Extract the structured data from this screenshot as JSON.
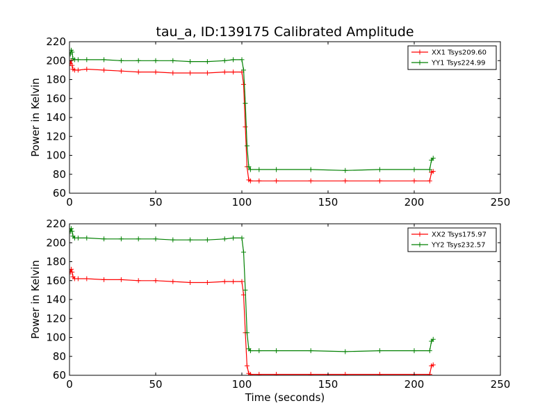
{
  "chart_data": [
    {
      "type": "line",
      "title": "tau_a, ID:139175 Calibrated Amplitude",
      "xlabel": "",
      "ylabel": "Power in Kelvin",
      "xlim": [
        0,
        250
      ],
      "ylim": [
        60,
        220
      ],
      "xticks": [
        0,
        50,
        100,
        150,
        200,
        250
      ],
      "yticks": [
        60,
        80,
        100,
        120,
        140,
        160,
        180,
        200,
        220
      ],
      "grid": false,
      "legend_position": "top-right",
      "marker": "+",
      "series": [
        {
          "name": "XX1 Tsys209.60",
          "color": "#ff0000",
          "x": [
            0.5,
            1,
            1.5,
            2,
            3,
            5,
            10,
            20,
            30,
            40,
            50,
            60,
            70,
            80,
            90,
            95,
            100,
            101,
            102,
            103,
            104,
            105,
            110,
            120,
            140,
            160,
            180,
            200,
            209,
            210,
            211
          ],
          "y": [
            197,
            200,
            195,
            191,
            190,
            190,
            191,
            190,
            189,
            188,
            188,
            187,
            187,
            187,
            188,
            188,
            188,
            175,
            130,
            88,
            74,
            73,
            73,
            73,
            73,
            73,
            73,
            73,
            73,
            82,
            83
          ]
        },
        {
          "name": "YY1 Tsys224.99",
          "color": "#008000",
          "x": [
            0.5,
            1,
            1.5,
            2,
            3,
            5,
            10,
            20,
            30,
            40,
            50,
            60,
            70,
            80,
            90,
            95,
            100,
            101,
            102,
            103,
            104,
            105,
            110,
            120,
            140,
            160,
            180,
            200,
            209,
            210,
            211
          ],
          "y": [
            207,
            211,
            209,
            202,
            201,
            201,
            201,
            201,
            200,
            200,
            200,
            200,
            199,
            199,
            200,
            201,
            201,
            190,
            155,
            110,
            88,
            85,
            85,
            85,
            85,
            84,
            85,
            85,
            85,
            95,
            97
          ]
        }
      ]
    },
    {
      "type": "line",
      "title": "",
      "xlabel": "Time (seconds)",
      "ylabel": "Power in Kelvin",
      "xlim": [
        0,
        250
      ],
      "ylim": [
        60,
        220
      ],
      "xticks": [
        0,
        50,
        100,
        150,
        200,
        250
      ],
      "yticks": [
        60,
        80,
        100,
        120,
        140,
        160,
        180,
        200,
        220
      ],
      "grid": false,
      "legend_position": "top-right",
      "marker": "+",
      "series": [
        {
          "name": "XX2 Tsys175.97",
          "color": "#ff0000",
          "x": [
            0.5,
            1,
            1.5,
            2,
            3,
            5,
            10,
            20,
            30,
            40,
            50,
            60,
            70,
            80,
            90,
            95,
            100,
            101,
            102,
            103,
            104,
            105,
            110,
            120,
            140,
            160,
            180,
            200,
            209,
            210,
            211
          ],
          "y": [
            169,
            172,
            169,
            164,
            162,
            162,
            162,
            161,
            161,
            160,
            160,
            159,
            158,
            158,
            159,
            159,
            159,
            145,
            105,
            70,
            62,
            61,
            61,
            61,
            61,
            61,
            61,
            61,
            61,
            70,
            71
          ]
        },
        {
          "name": "YY2 Tsys232.57",
          "color": "#008000",
          "x": [
            0.5,
            1,
            1.5,
            2,
            3,
            5,
            10,
            20,
            30,
            40,
            50,
            60,
            70,
            80,
            90,
            95,
            100,
            101,
            102,
            103,
            104,
            105,
            110,
            120,
            140,
            160,
            180,
            200,
            209,
            210,
            211
          ],
          "y": [
            212,
            215,
            212,
            207,
            205,
            205,
            205,
            204,
            204,
            204,
            204,
            203,
            203,
            203,
            204,
            205,
            205,
            190,
            150,
            105,
            88,
            86,
            86,
            86,
            86,
            85,
            86,
            86,
            86,
            96,
            98
          ]
        }
      ]
    }
  ]
}
